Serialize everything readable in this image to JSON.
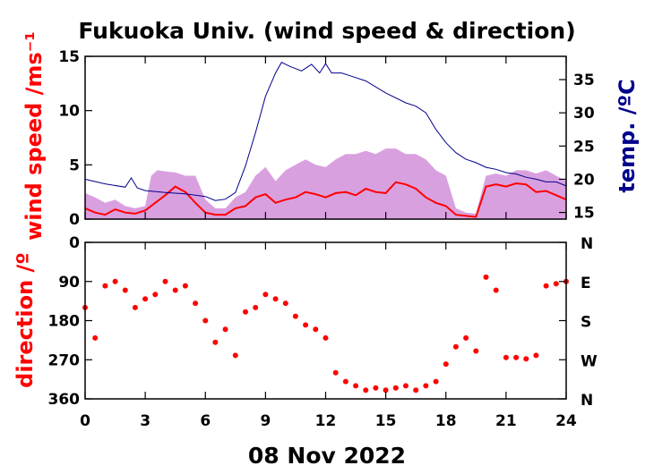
{
  "chart_data": [
    {
      "type": "line",
      "title": "Fukuoka Univ. (wind speed & direction)",
      "ylabel": "wind speed /ms⁻¹",
      "y2label": "temp. /ºC",
      "xlim": [
        0,
        24
      ],
      "ylim": [
        0,
        15
      ],
      "y2lim": [
        14,
        38.5
      ],
      "yticks": [
        "0",
        "5",
        "10",
        "15"
      ],
      "y2ticks": [
        "15",
        "20",
        "25",
        "30",
        "35"
      ],
      "grid": false,
      "colors": {
        "speed": "#ff0000",
        "gust": "#d9a0df",
        "temp": "#00008b"
      },
      "series": [
        {
          "role": "gust",
          "x": [
            0,
            0.5,
            1,
            1.5,
            2,
            2.5,
            3,
            3.3,
            3.6,
            4,
            4.5,
            5,
            5.5,
            6,
            6.5,
            7,
            7.5,
            8,
            8.5,
            9,
            9.5,
            10,
            10.5,
            11,
            11.5,
            12,
            12.5,
            13,
            13.5,
            14,
            14.5,
            15,
            15.5,
            16,
            16.5,
            17,
            17.5,
            18,
            18.5,
            19,
            19.5,
            20,
            20.5,
            21,
            21.5,
            22,
            22.5,
            23,
            23.5,
            24
          ],
          "values": [
            2.4,
            2.0,
            1.5,
            1.8,
            1.2,
            1.0,
            1.2,
            4.0,
            4.5,
            4.4,
            4.3,
            4.0,
            4.0,
            1.8,
            1.0,
            1.0,
            2.0,
            2.5,
            4.0,
            4.8,
            3.5,
            4.5,
            5.0,
            5.5,
            5.0,
            4.8,
            5.5,
            6.0,
            6.0,
            6.3,
            6.0,
            6.5,
            6.5,
            6.0,
            6.0,
            5.5,
            4.5,
            4.0,
            1.0,
            0.6,
            0.5,
            4.0,
            4.2,
            4.0,
            4.5,
            4.5,
            4.2,
            4.5,
            4.0,
            3.5
          ]
        },
        {
          "role": "speed",
          "x": [
            0,
            0.5,
            1,
            1.5,
            2,
            2.5,
            3,
            3.5,
            4,
            4.5,
            5,
            5.5,
            6,
            6.5,
            7,
            7.5,
            8,
            8.5,
            9,
            9.5,
            10,
            10.5,
            11,
            11.5,
            12,
            12.5,
            13,
            13.5,
            14,
            14.5,
            15,
            15.5,
            16,
            16.5,
            17,
            17.5,
            18,
            18.5,
            19,
            19.5,
            20,
            20.5,
            21,
            21.5,
            22,
            22.5,
            23,
            23.5,
            24
          ],
          "values": [
            1.0,
            0.6,
            0.4,
            0.9,
            0.6,
            0.5,
            0.8,
            1.5,
            2.2,
            3.0,
            2.5,
            1.5,
            0.6,
            0.4,
            0.4,
            1.0,
            1.2,
            2.0,
            2.3,
            1.5,
            1.8,
            2.0,
            2.5,
            2.3,
            2.0,
            2.4,
            2.5,
            2.2,
            2.8,
            2.5,
            2.4,
            3.4,
            3.2,
            2.8,
            2.0,
            1.5,
            1.2,
            0.4,
            0.3,
            0.2,
            3.0,
            3.2,
            3.0,
            3.3,
            3.2,
            2.5,
            2.6,
            2.2,
            1.8
          ]
        },
        {
          "role": "temp",
          "x": [
            0,
            1,
            2,
            2.3,
            2.6,
            3,
            4,
            5,
            6,
            6.5,
            7,
            7.5,
            8,
            8.5,
            9,
            9.5,
            9.8,
            10.2,
            10.8,
            11.3,
            11.7,
            12,
            12.3,
            12.8,
            13.3,
            14,
            15,
            16,
            16.5,
            17,
            17.5,
            18,
            18.5,
            19,
            19.5,
            20,
            20.5,
            21,
            21.5,
            22,
            22.5,
            23,
            23.5,
            24
          ],
          "values": [
            20.0,
            19.3,
            18.8,
            20.2,
            18.7,
            18.3,
            18.0,
            17.8,
            17.4,
            16.8,
            17.0,
            18.0,
            22.0,
            27.0,
            32.5,
            36.0,
            37.6,
            37.0,
            36.3,
            37.3,
            36.0,
            37.4,
            36.0,
            36.0,
            35.5,
            34.8,
            33.0,
            31.5,
            31.0,
            30.0,
            27.5,
            25.5,
            24.0,
            23.0,
            22.5,
            21.8,
            21.5,
            21.0,
            20.8,
            20.3,
            20.0,
            19.6,
            19.6,
            19.0
          ]
        }
      ]
    },
    {
      "type": "scatter",
      "ylabel": "direction /º",
      "xlabel": "08 Nov 2022",
      "xlim": [
        0,
        24
      ],
      "ylim": [
        0,
        360
      ],
      "xticks": [
        "0",
        "3",
        "6",
        "9",
        "12",
        "15",
        "18",
        "21",
        "24"
      ],
      "yticks": [
        "0",
        "90",
        "180",
        "270",
        "360"
      ],
      "compass": [
        "N",
        "E",
        "S",
        "W",
        "N"
      ],
      "grid": false,
      "series": [
        {
          "role": "direction",
          "x": [
            0,
            0.5,
            1,
            1.5,
            2,
            2.5,
            3,
            3.5,
            4,
            4.5,
            5,
            5.5,
            6,
            6.5,
            7,
            7.5,
            8,
            8.5,
            9,
            9.5,
            10,
            10.5,
            11,
            11.5,
            12,
            12.5,
            13,
            13.5,
            14,
            14.5,
            15,
            15.5,
            16,
            16.5,
            17,
            17.5,
            18,
            18.5,
            19,
            19.5,
            20,
            20.5,
            21,
            21.5,
            22,
            22.5,
            23,
            23.5,
            24
          ],
          "values": [
            150,
            220,
            100,
            90,
            110,
            150,
            130,
            120,
            90,
            110,
            100,
            140,
            180,
            230,
            200,
            260,
            160,
            150,
            120,
            130,
            140,
            170,
            190,
            200,
            220,
            300,
            320,
            330,
            340,
            335,
            340,
            335,
            330,
            340,
            330,
            320,
            280,
            240,
            220,
            250,
            80,
            110,
            265,
            265,
            268,
            260,
            100,
            95,
            90
          ]
        }
      ]
    }
  ]
}
